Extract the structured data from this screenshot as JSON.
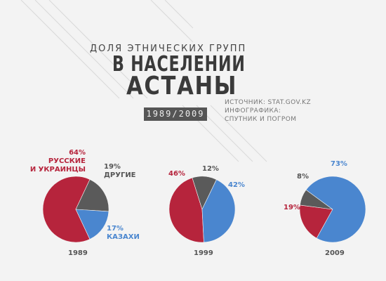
{
  "header": {
    "title_line1": "ДОЛЯ ЭТНИЧЕСКИХ ГРУПП",
    "title_line2": "В НАСЕЛЕНИИ",
    "title_line3": "АСТАНЫ",
    "years": "1989/2009"
  },
  "source": {
    "line1": "ИСТОЧНИК: STAT.GOV.KZ",
    "line2": "ИНФОГРАФИКА:",
    "line3": "СПУТНИК И ПОГРОМ"
  },
  "colors": {
    "russians_ukrainians": "#b6243c",
    "others": "#5a5a5a",
    "kazakhs": "#4a86cf"
  },
  "chart_data": [
    {
      "type": "pie",
      "title": "1989",
      "slices": [
        {
          "group": "russians_ukrainians",
          "value": 64,
          "label_pct": "64%",
          "label_name_1": "РУССКИЕ",
          "label_name_2": "И УКРАИНЦЫ"
        },
        {
          "group": "others",
          "value": 19,
          "label_pct": "19%",
          "label_name_1": "ДРУГИЕ"
        },
        {
          "group": "kazakhs",
          "value": 17,
          "label_pct": "17%",
          "label_name_1": "КАЗАХИ"
        }
      ]
    },
    {
      "type": "pie",
      "title": "1999",
      "slices": [
        {
          "group": "russians_ukrainians",
          "value": 46,
          "label_pct": "46%"
        },
        {
          "group": "others",
          "value": 12,
          "label_pct": "12%"
        },
        {
          "group": "kazakhs",
          "value": 42,
          "label_pct": "42%"
        }
      ]
    },
    {
      "type": "pie",
      "title": "2009",
      "slices": [
        {
          "group": "russians_ukrainians",
          "value": 19,
          "label_pct": "19%"
        },
        {
          "group": "others",
          "value": 8,
          "label_pct": "8%"
        },
        {
          "group": "kazakhs",
          "value": 73,
          "label_pct": "73%"
        }
      ]
    }
  ]
}
